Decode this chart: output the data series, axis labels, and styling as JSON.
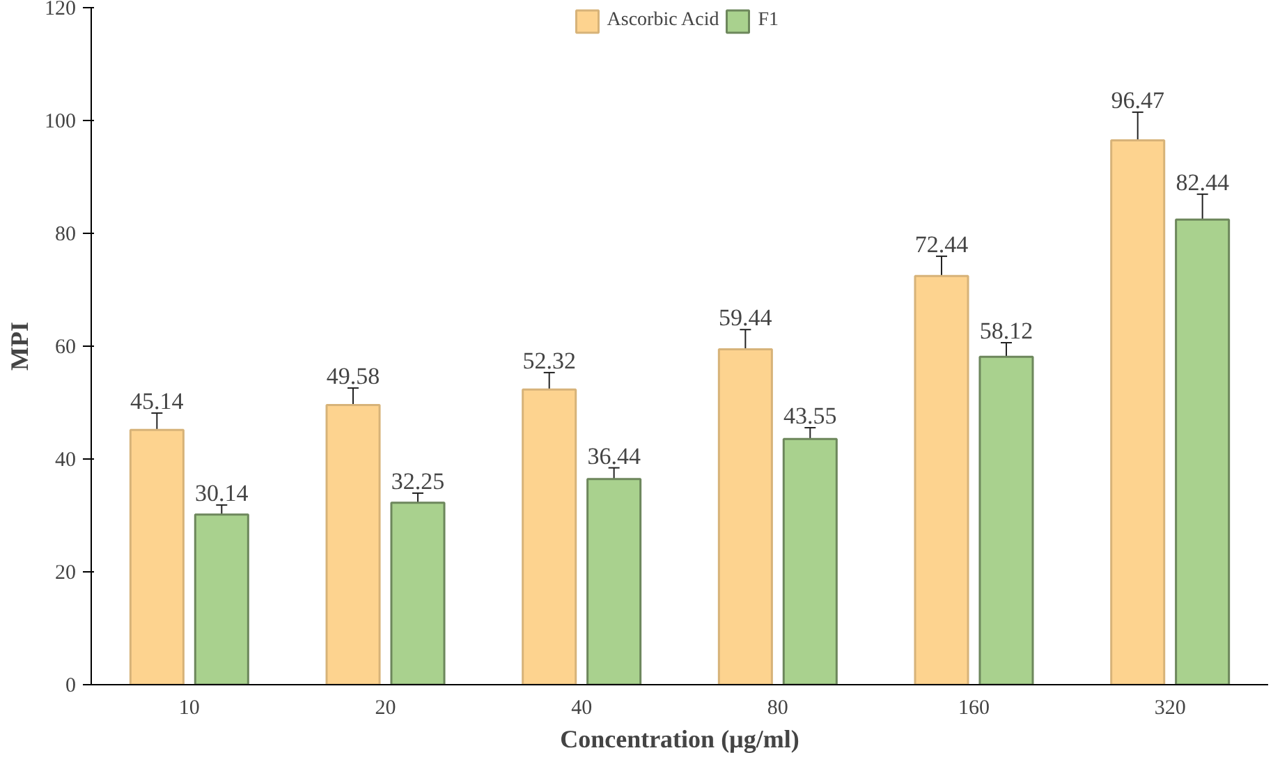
{
  "chart_data": {
    "type": "bar",
    "xlabel": "Concentration (µg/ml)",
    "ylabel": "MPI",
    "categories": [
      "10",
      "20",
      "40",
      "80",
      "160",
      "320"
    ],
    "series": [
      {
        "name": "Ascorbic Acid",
        "color": "#fdd38f",
        "values": [
          45.14,
          49.58,
          52.32,
          59.44,
          72.44,
          96.47
        ],
        "errors": [
          3,
          3,
          3,
          3.5,
          3.5,
          5
        ]
      },
      {
        "name": "F1",
        "color": "#a9d18e",
        "values": [
          30.14,
          32.25,
          36.44,
          43.55,
          58.12,
          82.44
        ],
        "errors": [
          1.7,
          1.7,
          2,
          2,
          2.5,
          4.5
        ]
      }
    ],
    "ylim": [
      0,
      120
    ],
    "yticks": [
      0,
      20,
      40,
      60,
      80,
      100,
      120
    ],
    "data_labels": true,
    "grid": false,
    "legend": "top"
  }
}
